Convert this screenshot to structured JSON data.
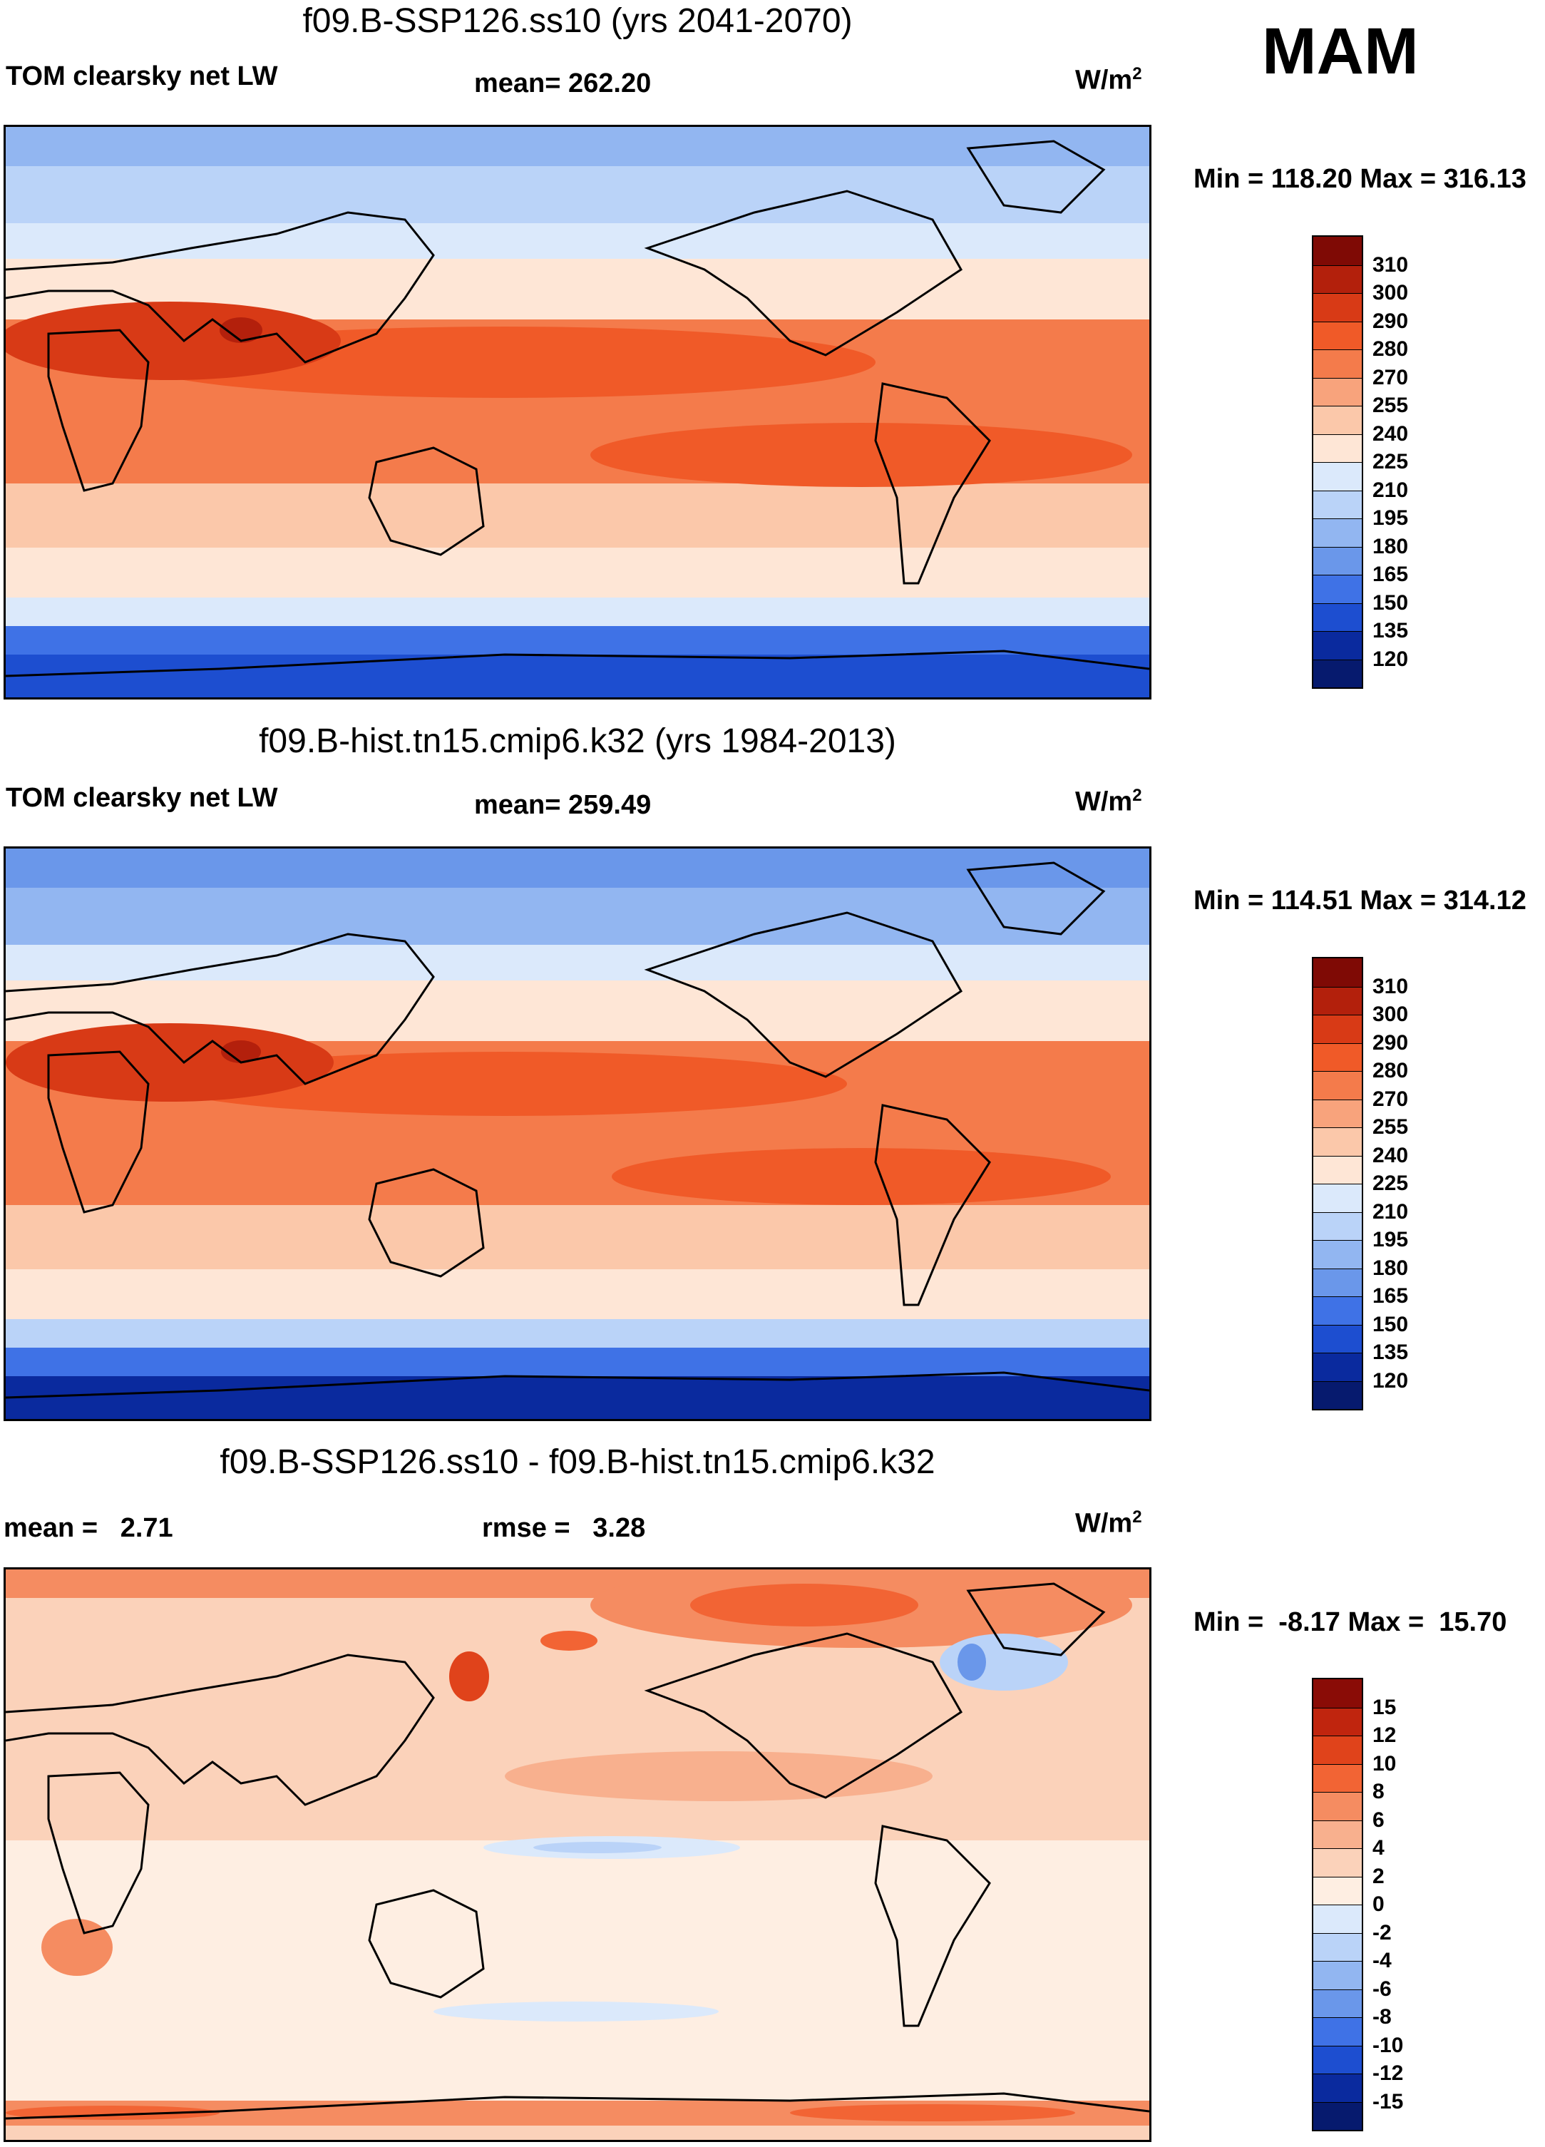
{
  "season": "MAM",
  "panels": [
    {
      "id": "future",
      "title": "f09.B-SSP126.ss10 (yrs 2041-2070)",
      "left_label": "TOM clearsky net LW",
      "mid_label": "mean= 262.20",
      "units": "W/m",
      "units_sup": "2",
      "minmax": "Min = 118.20 Max = 316.13",
      "colorbar": {
        "labels": [
          "310",
          "300",
          "290",
          "280",
          "270",
          "255",
          "240",
          "225",
          "210",
          "195",
          "180",
          "165",
          "150",
          "135",
          "120"
        ],
        "colors": [
          "#7f0a05",
          "#b3200c",
          "#d83a16",
          "#f05a28",
          "#f47b4b",
          "#f8a37c",
          "#fbc8aa",
          "#fee6d6",
          "#dbe9fb",
          "#bad3f8",
          "#92b6f1",
          "#6a97ea",
          "#3f72e6",
          "#1d4ed0",
          "#0a2a9e",
          "#061a6e"
        ]
      }
    },
    {
      "id": "historical",
      "title": "f09.B-hist.tn15.cmip6.k32 (yrs 1984-2013)",
      "left_label": "TOM clearsky net LW",
      "mid_label": "mean= 259.49",
      "units": "W/m",
      "units_sup": "2",
      "minmax": "Min = 114.51 Max = 314.12",
      "colorbar": {
        "labels": [
          "310",
          "300",
          "290",
          "280",
          "270",
          "255",
          "240",
          "225",
          "210",
          "195",
          "180",
          "165",
          "150",
          "135",
          "120"
        ],
        "colors": [
          "#7f0a05",
          "#b3200c",
          "#d83a16",
          "#f05a28",
          "#f47b4b",
          "#f8a37c",
          "#fbc8aa",
          "#fee6d6",
          "#dbe9fb",
          "#bad3f8",
          "#92b6f1",
          "#6a97ea",
          "#3f72e6",
          "#1d4ed0",
          "#0a2a9e",
          "#061a6e"
        ]
      }
    },
    {
      "id": "difference",
      "title": "f09.B-SSP126.ss10 - f09.B-hist.tn15.cmip6.k32",
      "left_label": "mean =   2.71",
      "mid_label": "rmse =   3.28",
      "units": "W/m",
      "units_sup": "2",
      "minmax": "Min =  -8.17 Max =  15.70",
      "colorbar": {
        "labels": [
          "15",
          "12",
          "10",
          "8",
          "6",
          "4",
          "2",
          "0",
          "-2",
          "-4",
          "-6",
          "-8",
          "-10",
          "-12",
          "-15"
        ],
        "colors": [
          "#8a0c06",
          "#c0250e",
          "#e0431b",
          "#f26434",
          "#f58c61",
          "#f8b08e",
          "#fbd2ba",
          "#feeee2",
          "#dbe9fb",
          "#bad3f8",
          "#92b6f1",
          "#6a97ea",
          "#3f72e6",
          "#1d4ed0",
          "#0a2a9e",
          "#061a6e"
        ]
      }
    }
  ],
  "chart_data": [
    {
      "type": "heatmap",
      "title": "f09.B-SSP126.ss10 (yrs 2041-2070)",
      "variable": "TOM clearsky net LW",
      "units": "W/m2",
      "season": "MAM",
      "mean": 262.2,
      "min": 118.2,
      "max": 316.13,
      "contour_levels": [
        120,
        135,
        150,
        165,
        180,
        195,
        210,
        225,
        240,
        255,
        270,
        280,
        290,
        300,
        310
      ]
    },
    {
      "type": "heatmap",
      "title": "f09.B-hist.tn15.cmip6.k32 (yrs 1984-2013)",
      "variable": "TOM clearsky net LW",
      "units": "W/m2",
      "season": "MAM",
      "mean": 259.49,
      "min": 114.51,
      "max": 314.12,
      "contour_levels": [
        120,
        135,
        150,
        165,
        180,
        195,
        210,
        225,
        240,
        255,
        270,
        280,
        290,
        300,
        310
      ]
    },
    {
      "type": "heatmap",
      "title": "f09.B-SSP126.ss10 - f09.B-hist.tn15.cmip6.k32",
      "units": "W/m2",
      "season": "MAM",
      "mean": 2.71,
      "rmse": 3.28,
      "min": -8.17,
      "max": 15.7,
      "contour_levels": [
        -15,
        -12,
        -10,
        -8,
        -6,
        -4,
        -2,
        0,
        2,
        4,
        6,
        8,
        10,
        12,
        15
      ]
    }
  ]
}
